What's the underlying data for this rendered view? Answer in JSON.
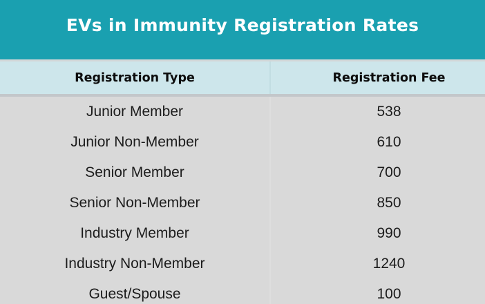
{
  "title": "EVs in Immunity Registration Rates",
  "table": {
    "columns": [
      "Registration Type",
      "Registration Fee"
    ],
    "rows": [
      {
        "type": "Junior Member",
        "fee": "538"
      },
      {
        "type": "Junior Non-Member",
        "fee": "610"
      },
      {
        "type": "Senior Member",
        "fee": "700"
      },
      {
        "type": "Senior Non-Member",
        "fee": "850"
      },
      {
        "type": "Industry Member",
        "fee": "990"
      },
      {
        "type": "Industry Non-Member",
        "fee": "1240"
      },
      {
        "type": "Guest/Spouse",
        "fee": "100"
      }
    ]
  },
  "colors": {
    "banner_bg": "#1aa0b0",
    "title_text": "#ffffff",
    "header_row_bg": "#cde6eb",
    "body_bg": "#d9d9d9",
    "top_separator": "#d3d7d8",
    "header_divider": "#c3c7ca",
    "body_text": "#1c1c1c",
    "header_text": "#0d0d0d"
  },
  "chart_data": {
    "type": "table",
    "title": "EVs in Immunity Registration Rates",
    "columns": [
      "Registration Type",
      "Registration Fee"
    ],
    "rows": [
      [
        "Junior Member",
        538
      ],
      [
        "Junior Non-Member",
        610
      ],
      [
        "Senior Member",
        700
      ],
      [
        "Senior Non-Member",
        850
      ],
      [
        "Industry Member",
        990
      ],
      [
        "Industry Non-Member",
        1240
      ],
      [
        "Guest/Spouse",
        100
      ]
    ]
  }
}
